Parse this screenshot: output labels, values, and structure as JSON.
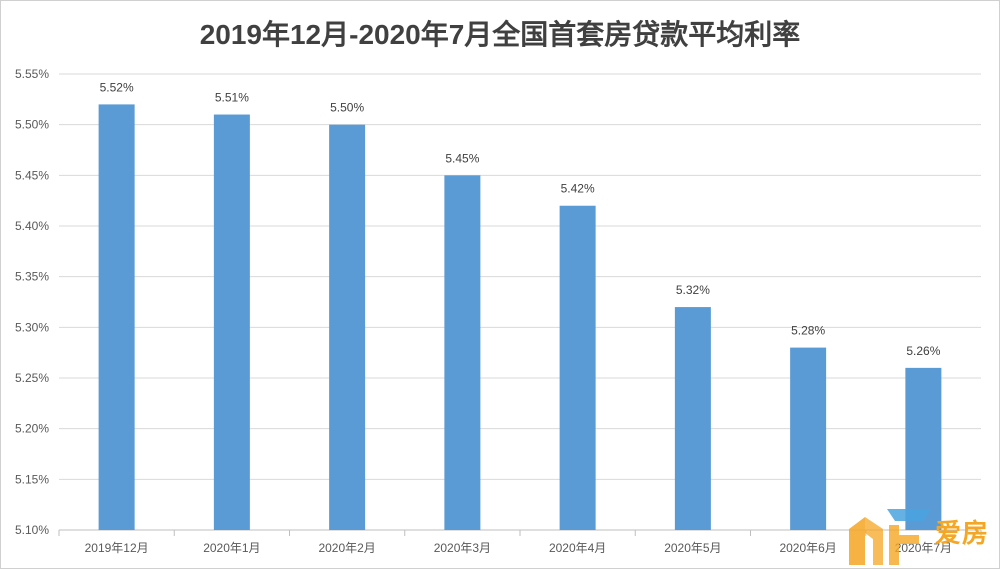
{
  "chart_data": {
    "type": "bar",
    "title": "2019年12月-2020年7月全国首套房贷款平均利率",
    "categories": [
      "2019年12月",
      "2020年1月",
      "2020年2月",
      "2020年3月",
      "2020年4月",
      "2020年5月",
      "2020年6月",
      "2020年7月"
    ],
    "values": [
      5.52,
      5.51,
      5.5,
      5.45,
      5.42,
      5.32,
      5.28,
      5.26
    ],
    "data_labels": [
      "5.52%",
      "5.51%",
      "5.50%",
      "5.45%",
      "5.42%",
      "5.32%",
      "5.28%",
      "5.26%"
    ],
    "yticks": [
      "5.10%",
      "5.15%",
      "5.20%",
      "5.25%",
      "5.30%",
      "5.35%",
      "5.40%",
      "5.45%",
      "5.50%",
      "5.55%"
    ],
    "ylim": [
      5.1,
      5.55
    ],
    "xlabel": "",
    "ylabel": "",
    "grid": true,
    "legend": "none",
    "bar_color": "#5b9bd5"
  },
  "watermark": {
    "text": "爱房",
    "icon": "house-logo-icon",
    "colors": [
      "#f5a623",
      "#4aa3df"
    ]
  }
}
